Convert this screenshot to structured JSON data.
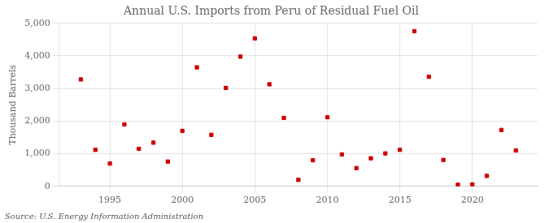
{
  "chart_data": {
    "type": "scatter",
    "title": "Annual U.S. Imports from Peru of Residual Fuel Oil",
    "ylabel": "Thousand Barrels",
    "annotations": [
      "Source: U.S. Energy Information Administration"
    ],
    "x": [
      1993,
      1994,
      1995,
      1996,
      1997,
      1998,
      1999,
      2000,
      2001,
      2002,
      2003,
      2004,
      2005,
      2006,
      2007,
      2008,
      2009,
      2010,
      2011,
      2012,
      2013,
      2014,
      2015,
      2016,
      2017,
      2018,
      2019,
      2020,
      2021,
      2022,
      2023
    ],
    "values": [
      3280,
      1120,
      700,
      1900,
      1150,
      1340,
      760,
      1700,
      3650,
      1580,
      3020,
      3980,
      4540,
      3130,
      2100,
      200,
      800,
      2120,
      980,
      560,
      860,
      1010,
      1120,
      4760,
      3360,
      810,
      50,
      60,
      320,
      1730,
      1100
    ],
    "color": "#cc0000",
    "marker": "square",
    "xlim": [
      1991.5,
      2024.5
    ],
    "xticks": [
      1995,
      2000,
      2005,
      2010,
      2015,
      2020
    ],
    "ylim": [
      0,
      5000
    ],
    "yticks": [
      0,
      {
        "value": 1000,
        "label": "1,000"
      },
      {
        "value": 2000,
        "label": "2,000"
      },
      {
        "value": 3000,
        "label": "3,000"
      },
      {
        "value": 4000,
        "label": "4,000"
      },
      {
        "value": 5000,
        "label": "5,000"
      }
    ],
    "grid": true
  }
}
